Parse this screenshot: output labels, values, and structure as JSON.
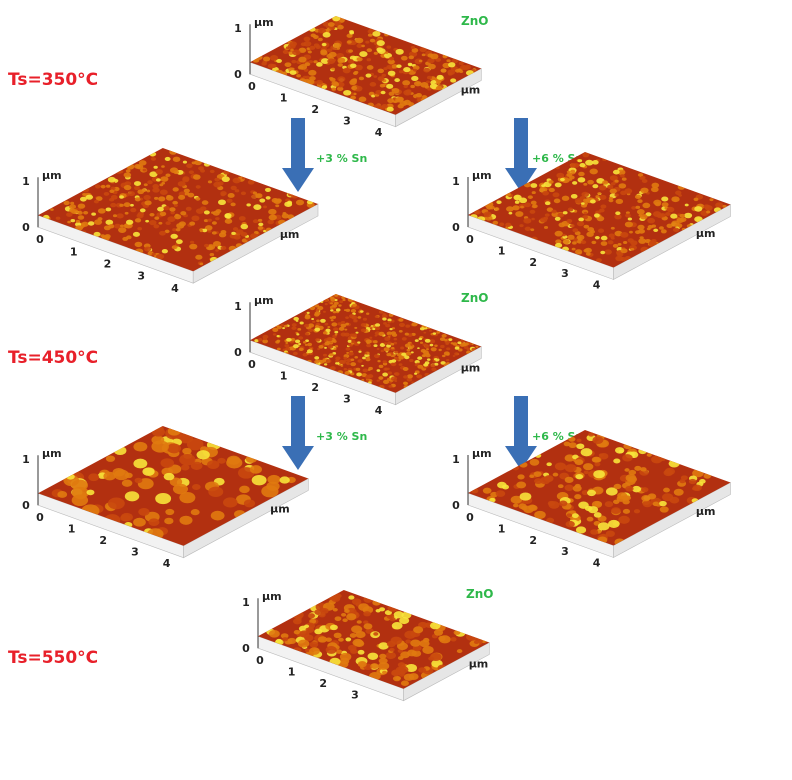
{
  "rows": [
    {
      "temperature": "Ts=350°C",
      "zno_label": "ZnO",
      "sn3_label": "+3 % Sn",
      "sn6_label": "+6 % Sn"
    },
    {
      "temperature": "Ts=450°C",
      "zno_label": "ZnO",
      "sn3_label": "+3 % Sn",
      "sn6_label": "+6 % Sn"
    },
    {
      "temperature": "Ts=550°C",
      "zno_label": "ZnO"
    }
  ],
  "axis": {
    "unit": "µm",
    "z_ticks": [
      "0",
      "1"
    ],
    "x_ticks": [
      "0",
      "1",
      "2",
      "3",
      "4"
    ]
  },
  "plots": [
    {
      "id": "zno-350",
      "grain": "fine"
    },
    {
      "id": "sn3-350",
      "grain": "fine"
    },
    {
      "id": "sn6-350",
      "grain": "fine"
    },
    {
      "id": "zno-450",
      "grain": "very-fine"
    },
    {
      "id": "sn3-450",
      "grain": "coarse"
    },
    {
      "id": "sn6-450",
      "grain": "medium"
    },
    {
      "id": "zno-550",
      "grain": "medium"
    }
  ],
  "colors": {
    "temperature": "#e8202a",
    "composition": "#2eb84a",
    "arrow": "#3a6fb5",
    "surface_low": "#b23010",
    "surface_mid": "#e07a10",
    "surface_high": "#f7e43a"
  }
}
